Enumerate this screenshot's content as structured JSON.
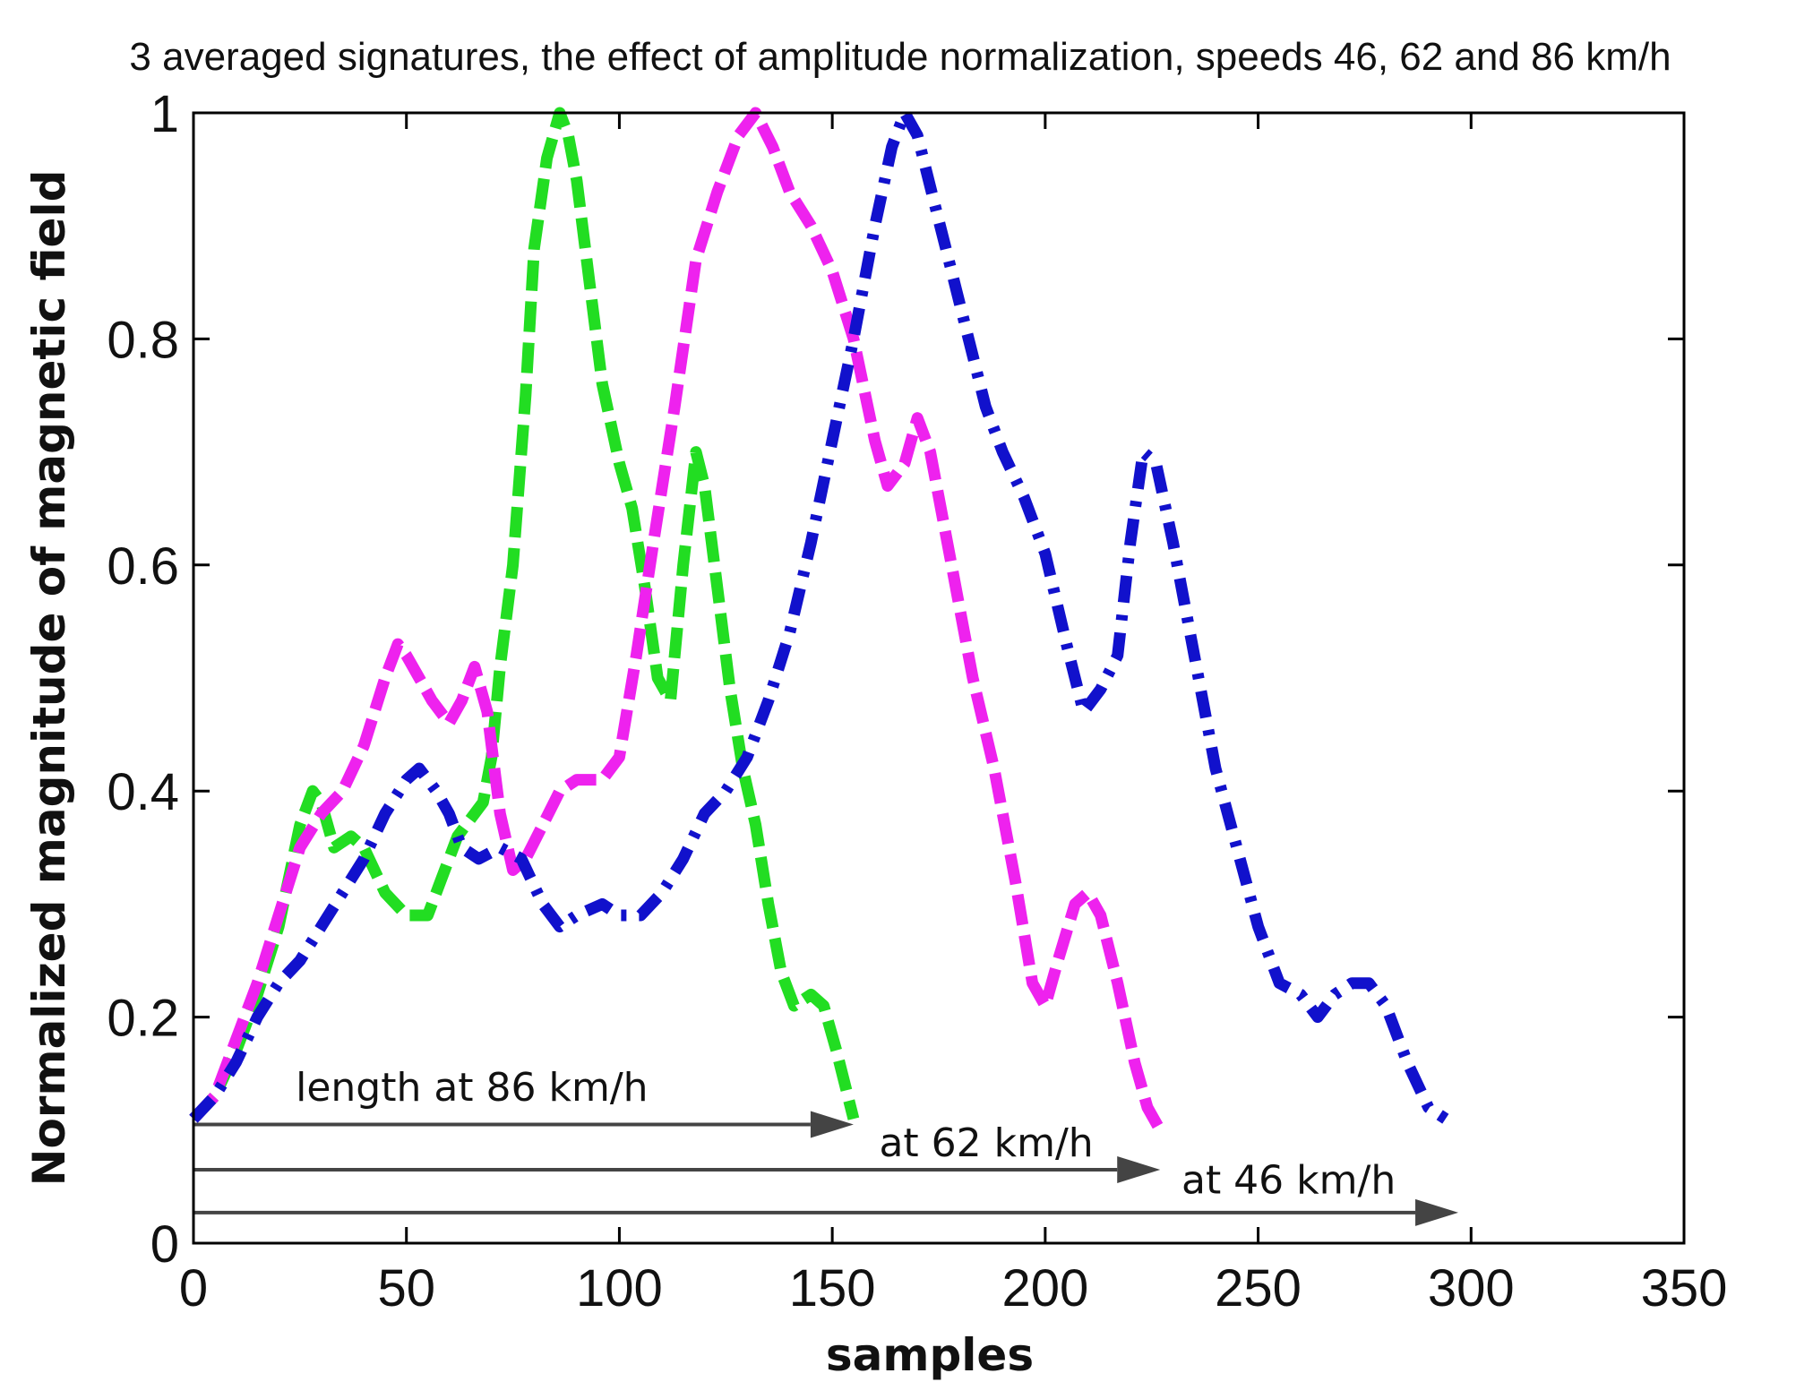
{
  "chart_data": {
    "type": "line",
    "title": "3 averaged signatures, the effect of amplitude normalization, speeds 46, 62 and 86 km/h",
    "xlabel": "samples",
    "ylabel": "Normalized magnitude of magnetic field",
    "xlim": [
      0,
      350
    ],
    "ylim": [
      0,
      1
    ],
    "xticks": [
      0,
      50,
      100,
      150,
      200,
      250,
      300,
      350
    ],
    "xtick_labels": [
      "0",
      "50",
      "100",
      "150",
      "200",
      "250",
      "300",
      "350"
    ],
    "yticks": [
      0,
      0.2,
      0.4,
      0.6,
      0.8,
      1
    ],
    "ytick_labels": [
      "0",
      "0.2",
      "0.4",
      "0.6",
      "0.8",
      "1"
    ],
    "grid": false,
    "series": [
      {
        "color": "#22dd22",
        "style": "dashed",
        "points": [
          [
            0,
            0.11
          ],
          [
            5,
            0.13
          ],
          [
            10,
            0.17
          ],
          [
            15,
            0.22
          ],
          [
            20,
            0.28
          ],
          [
            25,
            0.37
          ],
          [
            28,
            0.4
          ],
          [
            30,
            0.39
          ],
          [
            33,
            0.35
          ],
          [
            37,
            0.36
          ],
          [
            40,
            0.35
          ],
          [
            45,
            0.31
          ],
          [
            50,
            0.29
          ],
          [
            55,
            0.29
          ],
          [
            58,
            0.32
          ],
          [
            62,
            0.36
          ],
          [
            68,
            0.39
          ],
          [
            70,
            0.43
          ],
          [
            72,
            0.51
          ],
          [
            75,
            0.6
          ],
          [
            78,
            0.75
          ],
          [
            80,
            0.88
          ],
          [
            83,
            0.96
          ],
          [
            86,
            1.0
          ],
          [
            88,
            0.98
          ],
          [
            90,
            0.94
          ],
          [
            93,
            0.85
          ],
          [
            96,
            0.76
          ],
          [
            100,
            0.69
          ],
          [
            103,
            0.65
          ],
          [
            106,
            0.58
          ],
          [
            109,
            0.5
          ],
          [
            112,
            0.48
          ],
          [
            115,
            0.6
          ],
          [
            118,
            0.7
          ],
          [
            120,
            0.67
          ],
          [
            123,
            0.58
          ],
          [
            126,
            0.49
          ],
          [
            129,
            0.42
          ],
          [
            132,
            0.37
          ],
          [
            135,
            0.3
          ],
          [
            138,
            0.24
          ],
          [
            141,
            0.21
          ],
          [
            145,
            0.22
          ],
          [
            148,
            0.21
          ],
          [
            151,
            0.17
          ],
          [
            155,
            0.11
          ]
        ]
      },
      {
        "color": "#ee22ee",
        "style": "dashed",
        "points": [
          [
            0,
            0.11
          ],
          [
            5,
            0.13
          ],
          [
            10,
            0.18
          ],
          [
            15,
            0.23
          ],
          [
            20,
            0.29
          ],
          [
            25,
            0.35
          ],
          [
            30,
            0.38
          ],
          [
            35,
            0.4
          ],
          [
            40,
            0.44
          ],
          [
            45,
            0.5
          ],
          [
            48,
            0.53
          ],
          [
            50,
            0.52
          ],
          [
            53,
            0.5
          ],
          [
            56,
            0.48
          ],
          [
            60,
            0.46
          ],
          [
            63,
            0.48
          ],
          [
            66,
            0.51
          ],
          [
            69,
            0.47
          ],
          [
            72,
            0.38
          ],
          [
            75,
            0.33
          ],
          [
            78,
            0.34
          ],
          [
            82,
            0.37
          ],
          [
            86,
            0.4
          ],
          [
            90,
            0.41
          ],
          [
            96,
            0.41
          ],
          [
            100,
            0.43
          ],
          [
            104,
            0.52
          ],
          [
            108,
            0.62
          ],
          [
            113,
            0.74
          ],
          [
            118,
            0.87
          ],
          [
            123,
            0.93
          ],
          [
            128,
            0.98
          ],
          [
            132,
            1.0
          ],
          [
            136,
            0.97
          ],
          [
            140,
            0.93
          ],
          [
            145,
            0.9
          ],
          [
            150,
            0.86
          ],
          [
            155,
            0.8
          ],
          [
            160,
            0.71
          ],
          [
            163,
            0.67
          ],
          [
            167,
            0.69
          ],
          [
            170,
            0.73
          ],
          [
            173,
            0.7
          ],
          [
            178,
            0.6
          ],
          [
            183,
            0.5
          ],
          [
            188,
            0.42
          ],
          [
            193,
            0.32
          ],
          [
            197,
            0.23
          ],
          [
            200,
            0.21
          ],
          [
            203,
            0.25
          ],
          [
            207,
            0.3
          ],
          [
            210,
            0.31
          ],
          [
            213,
            0.29
          ],
          [
            217,
            0.23
          ],
          [
            221,
            0.16
          ],
          [
            224,
            0.12
          ],
          [
            227,
            0.1
          ]
        ]
      },
      {
        "color": "#1111cc",
        "style": "dashdot",
        "points": [
          [
            0,
            0.11
          ],
          [
            5,
            0.13
          ],
          [
            10,
            0.16
          ],
          [
            15,
            0.2
          ],
          [
            20,
            0.23
          ],
          [
            25,
            0.25
          ],
          [
            30,
            0.28
          ],
          [
            35,
            0.31
          ],
          [
            40,
            0.34
          ],
          [
            45,
            0.38
          ],
          [
            50,
            0.41
          ],
          [
            53,
            0.42
          ],
          [
            57,
            0.4
          ],
          [
            60,
            0.38
          ],
          [
            63,
            0.35
          ],
          [
            67,
            0.34
          ],
          [
            72,
            0.35
          ],
          [
            77,
            0.34
          ],
          [
            82,
            0.3
          ],
          [
            86,
            0.28
          ],
          [
            90,
            0.29
          ],
          [
            96,
            0.3
          ],
          [
            100,
            0.29
          ],
          [
            105,
            0.29
          ],
          [
            110,
            0.31
          ],
          [
            115,
            0.34
          ],
          [
            120,
            0.38
          ],
          [
            125,
            0.4
          ],
          [
            130,
            0.43
          ],
          [
            135,
            0.48
          ],
          [
            140,
            0.54
          ],
          [
            145,
            0.62
          ],
          [
            150,
            0.71
          ],
          [
            155,
            0.8
          ],
          [
            160,
            0.9
          ],
          [
            164,
            0.97
          ],
          [
            167,
            1.0
          ],
          [
            170,
            0.98
          ],
          [
            174,
            0.92
          ],
          [
            178,
            0.86
          ],
          [
            182,
            0.8
          ],
          [
            186,
            0.74
          ],
          [
            190,
            0.7
          ],
          [
            195,
            0.66
          ],
          [
            200,
            0.61
          ],
          [
            205,
            0.53
          ],
          [
            209,
            0.47
          ],
          [
            213,
            0.49
          ],
          [
            217,
            0.52
          ],
          [
            220,
            0.62
          ],
          [
            223,
            0.7
          ],
          [
            226,
            0.69
          ],
          [
            230,
            0.62
          ],
          [
            235,
            0.52
          ],
          [
            240,
            0.42
          ],
          [
            245,
            0.35
          ],
          [
            250,
            0.28
          ],
          [
            255,
            0.23
          ],
          [
            260,
            0.22
          ],
          [
            264,
            0.2
          ],
          [
            268,
            0.22
          ],
          [
            272,
            0.23
          ],
          [
            276,
            0.23
          ],
          [
            280,
            0.21
          ],
          [
            285,
            0.16
          ],
          [
            290,
            0.12
          ],
          [
            294,
            0.11
          ]
        ]
      }
    ],
    "annotations": [
      {
        "text": "length at 86 km/h",
        "arrow_y": 0.105,
        "arrow_x": [
          0,
          155
        ],
        "label_x": 24,
        "label_y": 0.137
      },
      {
        "text": "at 62 km/h",
        "arrow_y": 0.065,
        "arrow_x": [
          0,
          227
        ],
        "label_x": 161,
        "label_y": 0.088
      },
      {
        "text": "at 46 km/h",
        "arrow_y": 0.027,
        "arrow_x": [
          0,
          297
        ],
        "label_x": 232,
        "label_y": 0.055
      }
    ]
  }
}
